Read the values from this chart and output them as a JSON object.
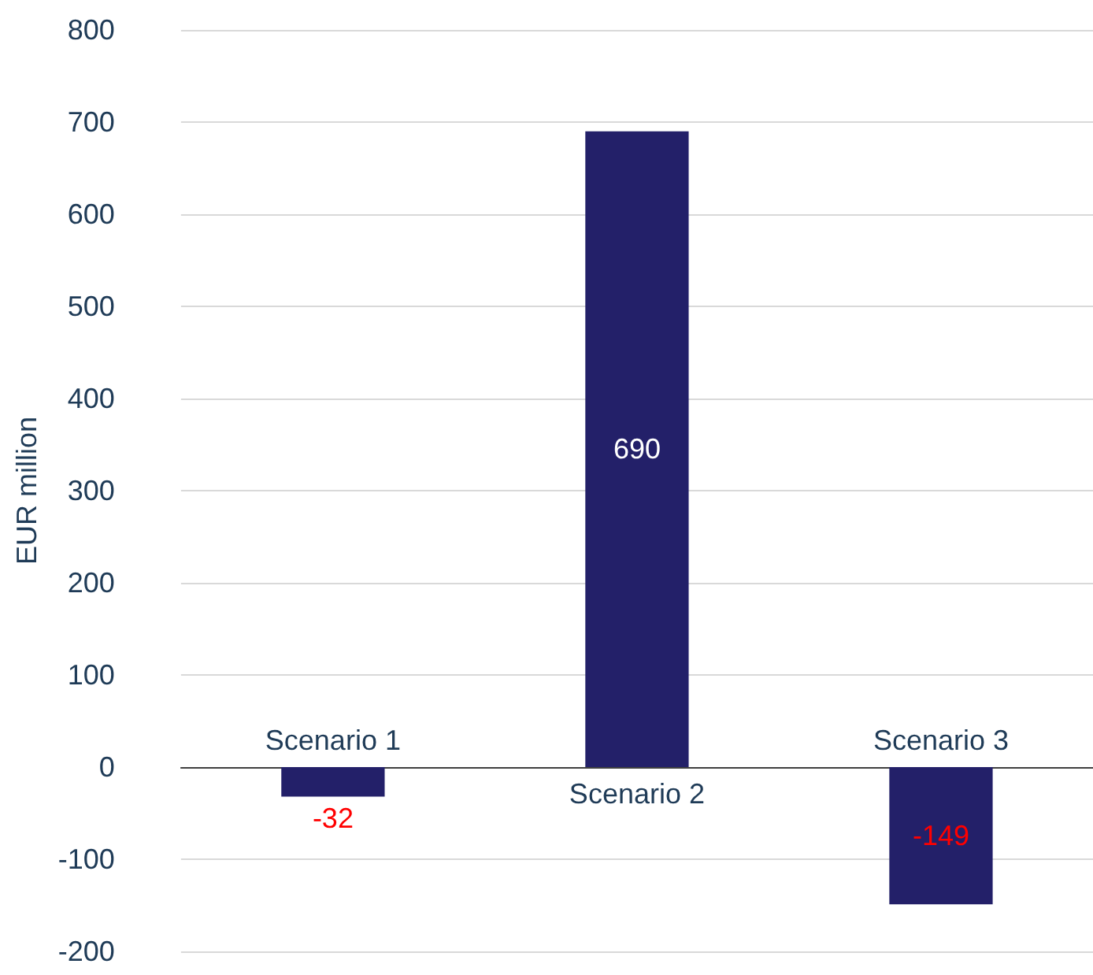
{
  "chart_data": {
    "type": "bar",
    "ylabel": "EUR million",
    "categories": [
      "Scenario 1",
      "Scenario 2",
      "Scenario 3"
    ],
    "values": [
      -32,
      690,
      -149
    ],
    "color": "#232069",
    "ylim": [
      -200,
      800
    ],
    "yticks": [
      -200,
      -100,
      0,
      100,
      200,
      300,
      400,
      500,
      600,
      700,
      800
    ],
    "grid": "y",
    "data_labels": true
  }
}
